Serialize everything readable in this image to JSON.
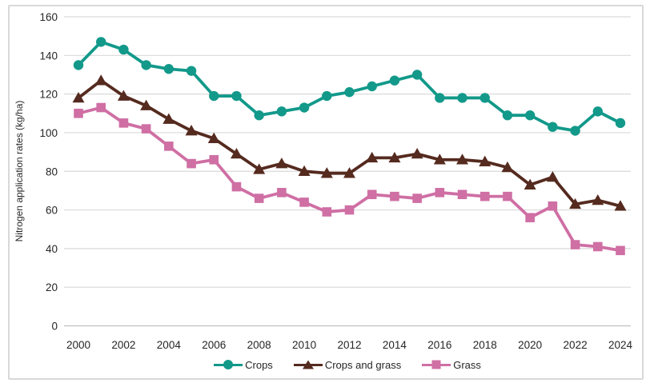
{
  "figure": {
    "ylabel": "Nitrogen application rates (kg/ha)"
  },
  "colors": {
    "gridline": "#d9d9d9",
    "axis_line": "#c0c0c0",
    "text": "#262626",
    "border": "#d9d9d9",
    "crops": "#12998a",
    "crops_and_grass": "#552a1f",
    "grass": "#cf6fa4"
  },
  "chart_data": {
    "type": "line",
    "title": "",
    "xlabel": "",
    "ylabel": "Nitrogen application rates (kg/ha)",
    "ylim": [
      0,
      160
    ],
    "ytick_step": 20,
    "grid": "horizontal",
    "legend_position": "bottom",
    "x": [
      2000,
      2001,
      2002,
      2003,
      2004,
      2005,
      2006,
      2007,
      2008,
      2009,
      2010,
      2011,
      2012,
      2013,
      2014,
      2015,
      2016,
      2017,
      2018,
      2019,
      2020,
      2021,
      2022,
      2023,
      2024
    ],
    "x_tick_labels": [
      "2000",
      "2002",
      "2004",
      "2006",
      "2008",
      "2010",
      "2012",
      "2014",
      "2016",
      "2018",
      "2020",
      "2022",
      "2024"
    ],
    "series": [
      {
        "name": "Crops",
        "marker": "circle",
        "color": "#12998a",
        "values": [
          135,
          147,
          143,
          135,
          133,
          132,
          119,
          119,
          109,
          111,
          113,
          119,
          121,
          124,
          127,
          130,
          118,
          118,
          118,
          109,
          109,
          103,
          101,
          111,
          105
        ]
      },
      {
        "name": "Crops and grass",
        "marker": "triangle",
        "color": "#552a1f",
        "values": [
          118,
          127,
          119,
          114,
          107,
          101,
          97,
          89,
          81,
          84,
          80,
          79,
          79,
          87,
          87,
          89,
          86,
          86,
          85,
          82,
          73,
          77,
          63,
          65,
          62
        ]
      },
      {
        "name": "Grass",
        "marker": "square",
        "color": "#cf6fa4",
        "values": [
          110,
          113,
          105,
          102,
          93,
          84,
          86,
          72,
          66,
          69,
          64,
          59,
          60,
          68,
          67,
          66,
          69,
          68,
          67,
          67,
          56,
          62,
          42,
          41,
          39
        ]
      }
    ]
  }
}
